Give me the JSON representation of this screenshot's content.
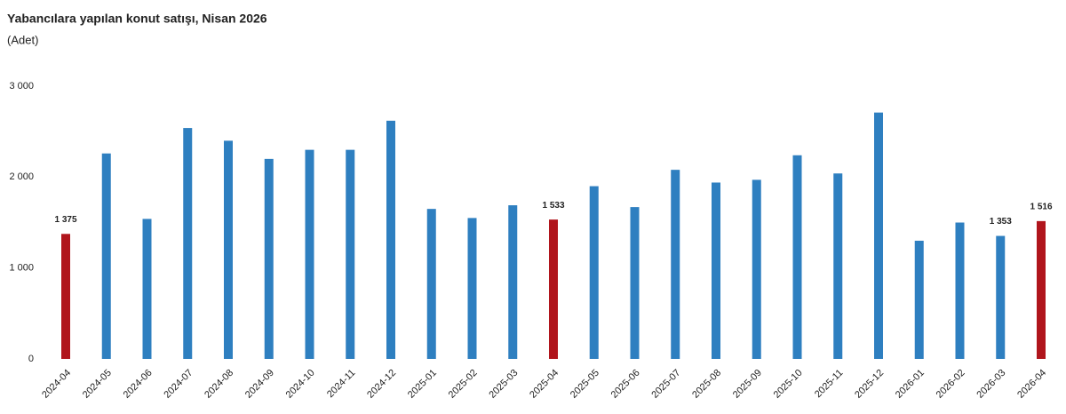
{
  "chart_data": {
    "type": "bar",
    "title": "Yabancılara yapılan konut satışı, Nisan 2026",
    "subtitle": "(Adet)",
    "categories": [
      "2024-04",
      "2024-05",
      "2024-06",
      "2024-07",
      "2024-08",
      "2024-09",
      "2024-10",
      "2024-11",
      "2024-12",
      "2025-01",
      "2025-02",
      "2025-03",
      "2025-04",
      "2025-05",
      "2025-06",
      "2025-07",
      "2025-08",
      "2025-09",
      "2025-10",
      "2025-11",
      "2025-12",
      "2026-01",
      "2026-02",
      "2026-03",
      "2026-04"
    ],
    "values": [
      1375,
      2260,
      1540,
      2540,
      2400,
      2200,
      2300,
      2300,
      2620,
      1650,
      1550,
      1690,
      1533,
      1900,
      1670,
      2080,
      1940,
      1970,
      2240,
      2040,
      2710,
      1300,
      1500,
      1353,
      1516
    ],
    "value_labels": [
      "1 375",
      null,
      null,
      null,
      null,
      null,
      null,
      null,
      null,
      null,
      null,
      null,
      "1 533",
      null,
      null,
      null,
      null,
      null,
      null,
      null,
      null,
      null,
      null,
      "1 353",
      "1 516"
    ],
    "colors": [
      "#b0151c",
      "#2e7fc0",
      "#2e7fc0",
      "#2e7fc0",
      "#2e7fc0",
      "#2e7fc0",
      "#2e7fc0",
      "#2e7fc0",
      "#2e7fc0",
      "#2e7fc0",
      "#2e7fc0",
      "#2e7fc0",
      "#b0151c",
      "#2e7fc0",
      "#2e7fc0",
      "#2e7fc0",
      "#2e7fc0",
      "#2e7fc0",
      "#2e7fc0",
      "#2e7fc0",
      "#2e7fc0",
      "#2e7fc0",
      "#2e7fc0",
      "#2e7fc0",
      "#b0151c"
    ],
    "ylim": [
      0,
      3000
    ],
    "yticks": [
      0,
      {
        "value": 1000,
        "label": "1 000"
      },
      {
        "value": 2000,
        "label": "2 000"
      },
      {
        "value": 3000,
        "label": "3 000"
      }
    ],
    "grid": false
  }
}
